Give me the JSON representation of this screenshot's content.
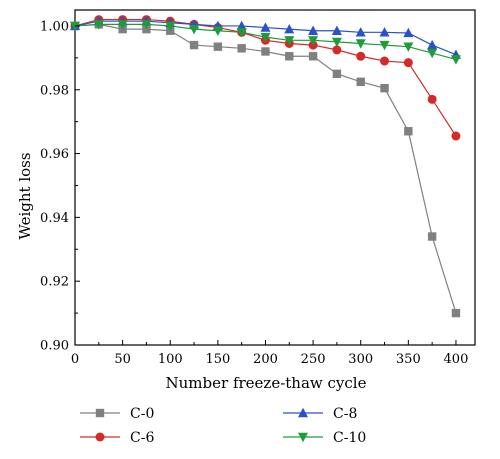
{
  "chart_data": {
    "type": "line",
    "title": "",
    "xlabel": "Number freeze-thaw cycle",
    "ylabel": "Weight loss",
    "xlim": [
      0,
      420
    ],
    "ylim": [
      0.9,
      1.005
    ],
    "xticks": [
      0,
      50,
      100,
      150,
      200,
      250,
      300,
      350,
      400
    ],
    "xtick_labels": [
      "0",
      "50",
      "100",
      "150",
      "200",
      "250",
      "300",
      "350",
      "400"
    ],
    "yticks": [
      0.9,
      0.92,
      0.94,
      0.96,
      0.98,
      1.0
    ],
    "ytick_labels": [
      "0.90",
      "0.92",
      "0.94",
      "0.96",
      "0.98",
      "1.00"
    ],
    "grid": false,
    "legend_position": "bottom",
    "x": [
      0,
      25,
      50,
      75,
      100,
      125,
      150,
      175,
      200,
      225,
      250,
      275,
      300,
      325,
      350,
      375,
      400
    ],
    "series": [
      {
        "name": "C-0",
        "color": "#808080",
        "marker": "square",
        "values": [
          1.0,
          1.0005,
          0.999,
          0.999,
          0.9985,
          0.994,
          0.9935,
          0.993,
          0.992,
          0.9905,
          0.9905,
          0.985,
          0.9825,
          0.9805,
          0.967,
          0.934,
          0.91
        ]
      },
      {
        "name": "C-6",
        "color": "#d42a2a",
        "marker": "circle",
        "values": [
          1.0,
          1.002,
          1.002,
          1.002,
          1.0015,
          1.0005,
          0.9995,
          0.998,
          0.9955,
          0.9945,
          0.994,
          0.9925,
          0.9905,
          0.989,
          0.9885,
          0.977,
          0.9655
        ]
      },
      {
        "name": "C-8",
        "color": "#2a52c8",
        "marker": "triangle-up",
        "values": [
          1.0,
          1.0015,
          1.0015,
          1.0015,
          1.001,
          1.0005,
          1.0,
          1.0,
          0.9995,
          0.999,
          0.9985,
          0.9985,
          0.998,
          0.998,
          0.9978,
          0.994,
          0.991
        ]
      },
      {
        "name": "C-10",
        "color": "#1f9c3a",
        "marker": "triangle-down",
        "values": [
          1.0,
          1.0005,
          1.0005,
          1.0005,
          1.0,
          0.999,
          0.9985,
          0.998,
          0.9965,
          0.9955,
          0.9955,
          0.995,
          0.9945,
          0.994,
          0.9935,
          0.9915,
          0.9895
        ]
      }
    ]
  }
}
